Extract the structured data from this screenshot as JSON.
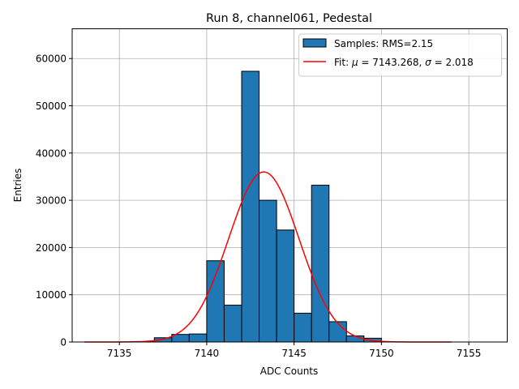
{
  "chart_data": {
    "type": "bar",
    "title": "Run 8, channel061, Pedestal",
    "xlabel": "ADC Counts",
    "ylabel": "Entries",
    "xlim": [
      7132.3,
      7157.2
    ],
    "ylim": [
      0,
      66300
    ],
    "grid": true,
    "legend_placement": "top-right",
    "x_ticks": [
      7135,
      7140,
      7145,
      7150,
      7155
    ],
    "y_ticks": [
      0,
      10000,
      20000,
      30000,
      40000,
      50000,
      60000
    ],
    "histogram": {
      "name": "Samples: RMS=2.15",
      "color": "#1f77b4",
      "bin_width": 1,
      "bins": [
        {
          "left": 7136,
          "value": 80
        },
        {
          "left": 7137,
          "value": 900
        },
        {
          "left": 7138,
          "value": 1600
        },
        {
          "left": 7139,
          "value": 1700
        },
        {
          "left": 7140,
          "value": 17200
        },
        {
          "left": 7141,
          "value": 7800
        },
        {
          "left": 7142,
          "value": 57300
        },
        {
          "left": 7143,
          "value": 30000
        },
        {
          "left": 7144,
          "value": 23700
        },
        {
          "left": 7145,
          "value": 6100
        },
        {
          "left": 7146,
          "value": 33200
        },
        {
          "left": 7147,
          "value": 4300
        },
        {
          "left": 7148,
          "value": 1300
        },
        {
          "left": 7149,
          "value": 800
        }
      ]
    },
    "fit": {
      "name": "Fit: μ = 7143.268, σ = 2.018",
      "mu_label": "μ",
      "mu_text": " = 7143.268, ",
      "sigma_label": "σ",
      "sigma_text": " = 2.018",
      "prefix": "Fit: ",
      "color": "#ff0000",
      "mu": 7143.268,
      "sigma": 2.018,
      "peak": 36000,
      "x_range": [
        7133,
        7154
      ]
    }
  }
}
